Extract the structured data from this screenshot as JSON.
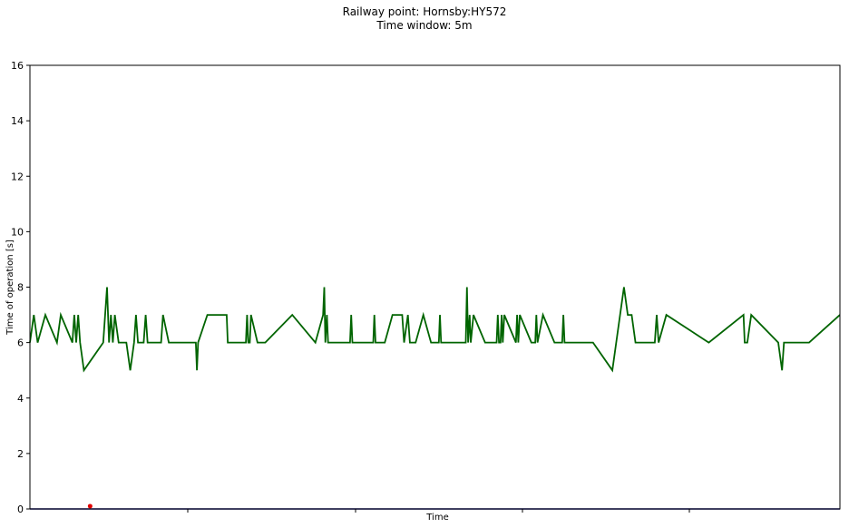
{
  "chart_data": {
    "type": "line",
    "title": [
      "Railway point: Hornsby:HY572",
      "Time window: 5m"
    ],
    "xlabel": "Time",
    "ylabel": "Time of operation [s]",
    "ylim": [
      0,
      16
    ],
    "yticks": [
      0,
      2,
      4,
      6,
      8,
      10,
      12,
      14,
      16
    ],
    "xticks_labels": [
      "",
      "",
      "",
      "",
      ""
    ],
    "grid": false,
    "series": [
      {
        "color": "#006400",
        "points": [
          [
            0,
            6
          ],
          [
            1,
            7
          ],
          [
            2,
            6
          ],
          [
            4,
            7
          ],
          [
            7,
            6
          ],
          [
            8,
            7
          ],
          [
            11,
            6
          ],
          [
            11.5,
            7
          ],
          [
            12,
            6
          ],
          [
            12.5,
            7
          ],
          [
            13,
            6
          ],
          [
            14,
            5
          ],
          [
            19,
            6
          ],
          [
            20,
            8
          ],
          [
            20.5,
            6
          ],
          [
            21,
            7
          ],
          [
            21.5,
            6
          ],
          [
            22,
            7
          ],
          [
            23,
            6
          ],
          [
            25,
            6
          ],
          [
            26,
            5
          ],
          [
            27,
            6
          ],
          [
            27.5,
            7
          ],
          [
            28,
            6
          ],
          [
            29.5,
            6
          ],
          [
            30,
            7
          ],
          [
            30.5,
            6
          ],
          [
            34,
            6
          ],
          [
            34.5,
            7
          ],
          [
            36,
            6
          ],
          [
            43,
            6
          ],
          [
            43.3,
            5
          ],
          [
            43.6,
            6
          ],
          [
            46,
            7
          ],
          [
            51,
            7
          ],
          [
            51.3,
            6
          ],
          [
            56,
            6
          ],
          [
            56.3,
            7
          ],
          [
            56.6,
            6
          ],
          [
            57,
            6
          ],
          [
            57.3,
            7
          ],
          [
            59,
            6
          ],
          [
            61,
            6
          ],
          [
            68,
            7
          ],
          [
            74,
            6
          ],
          [
            76,
            7
          ],
          [
            76.3,
            8
          ],
          [
            76.6,
            6
          ],
          [
            77,
            7
          ],
          [
            77.3,
            6
          ],
          [
            83,
            6
          ],
          [
            83.3,
            7
          ],
          [
            83.6,
            6
          ],
          [
            86,
            6
          ],
          [
            89,
            6
          ],
          [
            89.3,
            7
          ],
          [
            89.6,
            6
          ],
          [
            92,
            6
          ],
          [
            94,
            7
          ],
          [
            96.5,
            7
          ],
          [
            97,
            6
          ],
          [
            98,
            7
          ],
          [
            98.5,
            6
          ],
          [
            100,
            6
          ],
          [
            102,
            7
          ],
          [
            104,
            6
          ],
          [
            106,
            6
          ],
          [
            106.3,
            7
          ],
          [
            106.6,
            6
          ],
          [
            113,
            6
          ],
          [
            113.3,
            8
          ],
          [
            113.6,
            6
          ],
          [
            114,
            7
          ],
          [
            114.3,
            6
          ],
          [
            115,
            7
          ],
          [
            118,
            6
          ],
          [
            121,
            6
          ],
          [
            121.3,
            7
          ],
          [
            121.6,
            6
          ],
          [
            122,
            6
          ],
          [
            122.3,
            7
          ],
          [
            122.6,
            6
          ],
          [
            123,
            7
          ],
          [
            126,
            6
          ],
          [
            126.3,
            7
          ],
          [
            126.6,
            6
          ],
          [
            127,
            7
          ],
          [
            130,
            6
          ],
          [
            131,
            6
          ],
          [
            131.3,
            7
          ],
          [
            131.6,
            6
          ],
          [
            133,
            7
          ],
          [
            136,
            6
          ],
          [
            138,
            6
          ],
          [
            138.3,
            7
          ],
          [
            138.6,
            6
          ],
          [
            146,
            6
          ],
          [
            151,
            5
          ],
          [
            154,
            8
          ],
          [
            155,
            7
          ],
          [
            156,
            7
          ],
          [
            157,
            6
          ],
          [
            162,
            6
          ],
          [
            162.5,
            7
          ],
          [
            163,
            6
          ],
          [
            165,
            7
          ],
          [
            176,
            6
          ],
          [
            185,
            7
          ],
          [
            185.3,
            6
          ],
          [
            186,
            6
          ],
          [
            187,
            7
          ],
          [
            194,
            6
          ],
          [
            195,
            5
          ],
          [
            195.5,
            6
          ],
          [
            202,
            6
          ],
          [
            210,
            7
          ]
        ]
      },
      {
        "color": "#000080",
        "points": [
          [
            0,
            0
          ],
          [
            210,
            0
          ]
        ]
      }
    ],
    "markers": [
      {
        "color": "#e00000",
        "x": 15.6,
        "y": 0.1
      }
    ]
  }
}
